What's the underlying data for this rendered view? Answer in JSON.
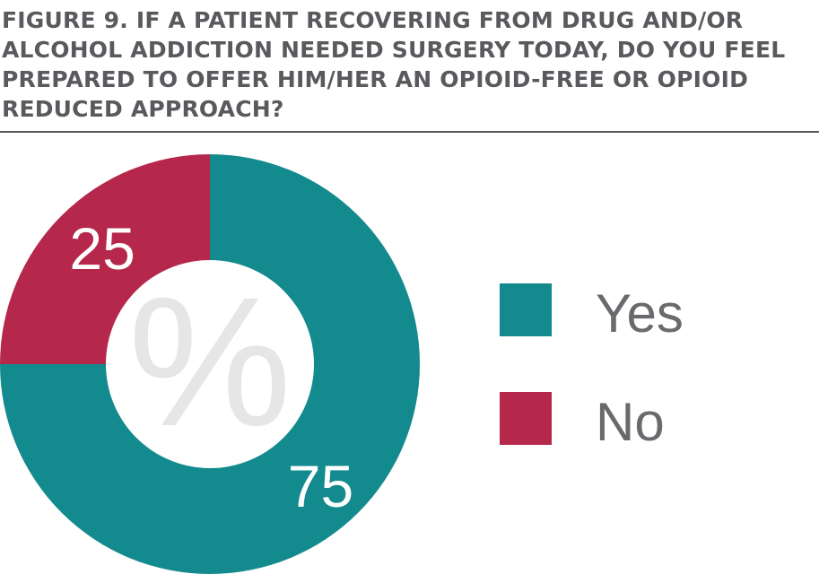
{
  "chart_data": {
    "type": "pie",
    "title": "FIGURE 9. IF A PATIENT RECOVERING FROM DRUG AND/OR ALCOHOL ADDICTION NEEDED SURGERY TODAY, DO YOU FEEL PREPARED TO OFFER HIM/HER AN OPIOID-FREE OR OPIOID REDUCED APPROACH?",
    "center_label": "%",
    "slices": [
      {
        "label": "Yes",
        "value": 75,
        "color": "#138a8d"
      },
      {
        "label": "No",
        "value": 25,
        "color": "#b5284c"
      }
    ],
    "legend_position": "right"
  }
}
